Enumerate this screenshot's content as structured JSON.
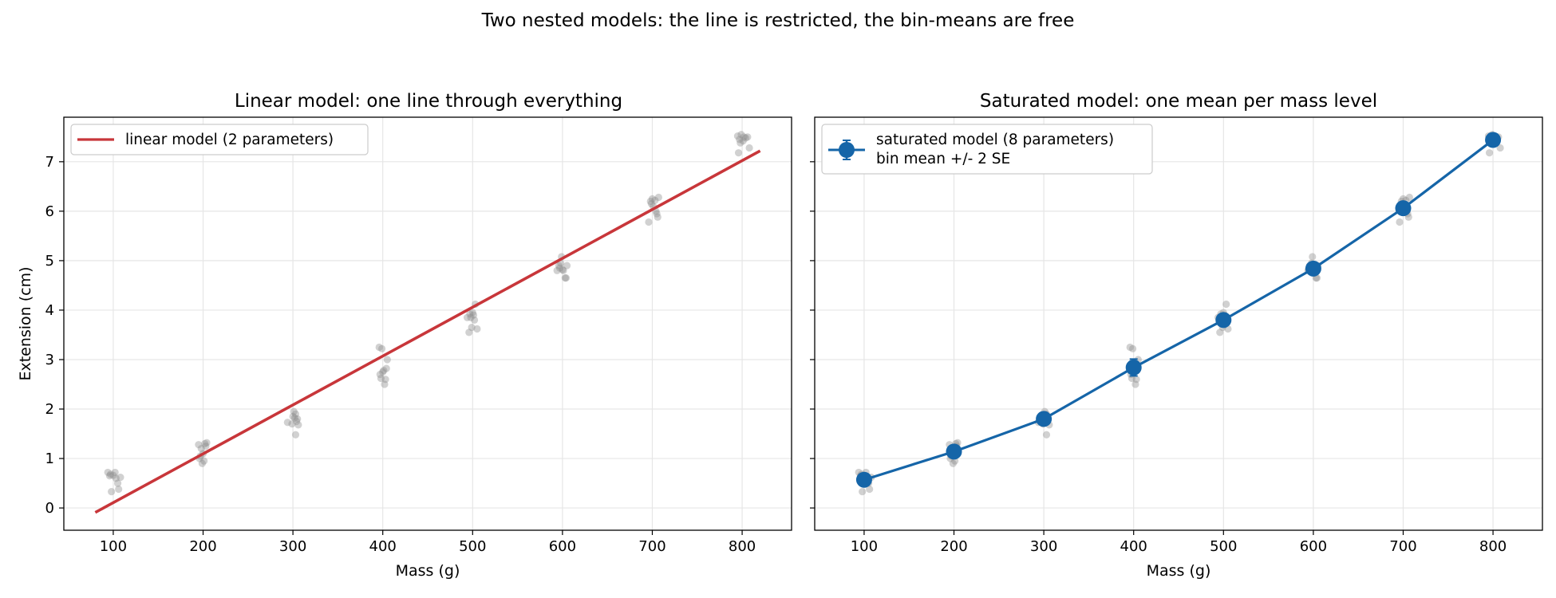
{
  "figure": {
    "suptitle": "Two nested models: the line is restricted, the bin-means are free"
  },
  "colors": {
    "points": "#8c8c8c",
    "linear": "#c8363a",
    "saturated": "#1565a8",
    "grid": "#e6e6e6"
  },
  "chart_data": [
    {
      "type": "scatter",
      "title": "Linear model: one line through everything",
      "xlabel": "Mass (g)",
      "ylabel": "Extension (cm)",
      "xlim": [
        45,
        855
      ],
      "ylim": [
        -0.45,
        7.9
      ],
      "xticks": [
        100,
        200,
        300,
        400,
        500,
        600,
        700,
        800
      ],
      "yticks": [
        0,
        1,
        2,
        3,
        4,
        5,
        6,
        7
      ],
      "grid": true,
      "legend_position": "top-left",
      "legend": [
        "linear model (2 parameters)"
      ],
      "fit_line": {
        "name": "linear model (2 parameters)",
        "x": [
          80,
          820
        ],
        "y": [
          -0.09,
          7.22
        ]
      },
      "scatter_points": [
        {
          "x": 94,
          "y": 0.72
        },
        {
          "x": 97,
          "y": 0.68
        },
        {
          "x": 100,
          "y": 0.66
        },
        {
          "x": 103,
          "y": 0.6
        },
        {
          "x": 98,
          "y": 0.33
        },
        {
          "x": 102,
          "y": 0.72
        },
        {
          "x": 105,
          "y": 0.5
        },
        {
          "x": 106,
          "y": 0.38
        },
        {
          "x": 108,
          "y": 0.62
        },
        {
          "x": 96,
          "y": 0.65
        },
        {
          "x": 195,
          "y": 1.28
        },
        {
          "x": 198,
          "y": 1.2
        },
        {
          "x": 200,
          "y": 1.1
        },
        {
          "x": 202,
          "y": 1.3
        },
        {
          "x": 197,
          "y": 1.05
        },
        {
          "x": 201,
          "y": 0.95
        },
        {
          "x": 203,
          "y": 1.25
        },
        {
          "x": 199,
          "y": 0.9
        },
        {
          "x": 204,
          "y": 1.32
        },
        {
          "x": 196,
          "y": 1.0
        },
        {
          "x": 294,
          "y": 1.73
        },
        {
          "x": 301,
          "y": 1.95
        },
        {
          "x": 303,
          "y": 1.9
        },
        {
          "x": 302,
          "y": 1.82
        },
        {
          "x": 304,
          "y": 1.75
        },
        {
          "x": 306,
          "y": 1.68
        },
        {
          "x": 303,
          "y": 1.48
        },
        {
          "x": 300,
          "y": 1.85
        },
        {
          "x": 305,
          "y": 1.8
        },
        {
          "x": 299,
          "y": 1.7
        },
        {
          "x": 396,
          "y": 3.25
        },
        {
          "x": 399,
          "y": 3.22
        },
        {
          "x": 397,
          "y": 2.7
        },
        {
          "x": 401,
          "y": 2.78
        },
        {
          "x": 403,
          "y": 2.6
        },
        {
          "x": 402,
          "y": 2.5
        },
        {
          "x": 404,
          "y": 2.82
        },
        {
          "x": 405,
          "y": 3.0
        },
        {
          "x": 398,
          "y": 2.62
        },
        {
          "x": 400,
          "y": 2.75
        },
        {
          "x": 494,
          "y": 3.85
        },
        {
          "x": 497,
          "y": 3.92
        },
        {
          "x": 500,
          "y": 3.95
        },
        {
          "x": 503,
          "y": 4.12
        },
        {
          "x": 496,
          "y": 3.55
        },
        {
          "x": 499,
          "y": 3.65
        },
        {
          "x": 501,
          "y": 3.9
        },
        {
          "x": 505,
          "y": 3.62
        },
        {
          "x": 498,
          "y": 3.85
        },
        {
          "x": 502,
          "y": 3.8
        },
        {
          "x": 594,
          "y": 4.8
        },
        {
          "x": 597,
          "y": 4.85
        },
        {
          "x": 599,
          "y": 5.08
        },
        {
          "x": 601,
          "y": 4.8
        },
        {
          "x": 603,
          "y": 4.65
        },
        {
          "x": 605,
          "y": 4.9
        },
        {
          "x": 600,
          "y": 4.82
        },
        {
          "x": 604,
          "y": 4.65
        },
        {
          "x": 598,
          "y": 4.95
        },
        {
          "x": 596,
          "y": 4.9
        },
        {
          "x": 696,
          "y": 5.78
        },
        {
          "x": 698,
          "y": 6.2
        },
        {
          "x": 700,
          "y": 6.25
        },
        {
          "x": 703,
          "y": 6.22
        },
        {
          "x": 705,
          "y": 5.95
        },
        {
          "x": 707,
          "y": 6.28
        },
        {
          "x": 706,
          "y": 5.88
        },
        {
          "x": 704,
          "y": 6.0
        },
        {
          "x": 701,
          "y": 6.1
        },
        {
          "x": 699,
          "y": 6.15
        },
        {
          "x": 795,
          "y": 7.52
        },
        {
          "x": 797,
          "y": 7.45
        },
        {
          "x": 799,
          "y": 7.55
        },
        {
          "x": 802,
          "y": 7.5
        },
        {
          "x": 804,
          "y": 7.48
        },
        {
          "x": 806,
          "y": 7.5
        },
        {
          "x": 796,
          "y": 7.18
        },
        {
          "x": 801,
          "y": 7.42
        },
        {
          "x": 808,
          "y": 7.28
        },
        {
          "x": 798,
          "y": 7.38
        }
      ]
    },
    {
      "type": "line",
      "title": "Saturated model: one mean per mass level",
      "xlabel": "Mass (g)",
      "ylabel": "",
      "xlim": [
        45,
        855
      ],
      "ylim": [
        -0.45,
        7.9
      ],
      "xticks": [
        100,
        200,
        300,
        400,
        500,
        600,
        700,
        800
      ],
      "yticks": [
        0,
        1,
        2,
        3,
        4,
        5,
        6,
        7
      ],
      "grid": true,
      "legend_position": "top-left",
      "legend": [
        "saturated model (8 parameters)",
        "bin mean +/- 2 SE"
      ],
      "series": [
        {
          "name": "saturated model (8 parameters)\nbin mean +/- 2 SE",
          "x": [
            100,
            200,
            300,
            400,
            500,
            600,
            700,
            800
          ],
          "y": [
            0.57,
            1.14,
            1.8,
            2.84,
            3.8,
            4.84,
            6.06,
            7.44
          ],
          "err": [
            0.1,
            0.08,
            0.09,
            0.17,
            0.11,
            0.08,
            0.1,
            0.08
          ]
        }
      ],
      "scatter_points": "same as panel 1"
    }
  ]
}
